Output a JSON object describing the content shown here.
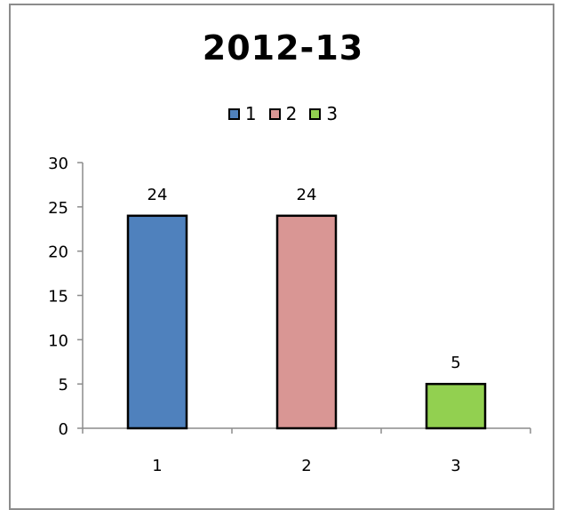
{
  "chart_data": {
    "type": "bar",
    "title": "2012-13",
    "categories": [
      "1",
      "2",
      "3"
    ],
    "values": [
      24,
      24,
      5
    ],
    "colors": [
      "#4f81bd",
      "#d99694",
      "#92d050"
    ],
    "legend": {
      "position": "top",
      "entries": [
        "1",
        "2",
        "3"
      ]
    },
    "ylim": [
      0,
      30
    ],
    "yticks": [
      0,
      5,
      10,
      15,
      20,
      25,
      30
    ],
    "xlabel": "",
    "ylabel": "",
    "grid": false
  }
}
